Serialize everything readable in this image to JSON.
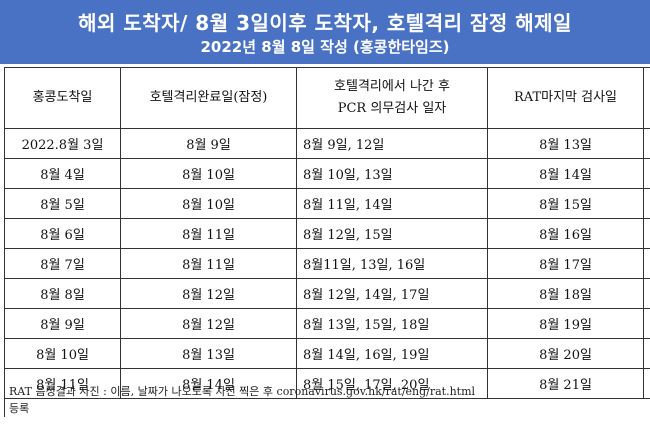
{
  "banner": {
    "title": "해외 도착자/ 8월 3일이후 도착자, 호텔격리 잠정 해제일",
    "subtitle": "2022년 8월 8일 작성 (홍콩한타임즈)"
  },
  "table": {
    "headers": [
      {
        "line1": "홍콩도착일",
        "line2": ""
      },
      {
        "line1": "호텔격리완료일(잠정)",
        "line2": ""
      },
      {
        "line1": "호텔격리에서 나간 후",
        "line2": "PCR 의무검사 일자"
      },
      {
        "line1": "RAT마지막 검사일",
        "line2": ""
      },
      {
        "line1": "",
        "line2": ""
      }
    ],
    "rows": [
      [
        "2022.8월 3일",
        "8월 9일",
        "8월 9일, 12일",
        "8월 13일"
      ],
      [
        "8월 4일",
        "8월 10일",
        "8월 10일, 13일",
        "8월 14일"
      ],
      [
        "8월 5일",
        "8월 10일",
        "8월 11일, 14일",
        "8월 15일"
      ],
      [
        "8월 6일",
        "8월 11일",
        "8월 12일, 15일",
        "8월 16일"
      ],
      [
        "8월 7일",
        "8월 11일",
        "8월11일, 13일, 16일",
        "8월 17일"
      ],
      [
        "8월 8일",
        "8월 12일",
        "8월 12일, 14일, 17일",
        "8월 18일"
      ],
      [
        "8월 9일",
        "8월 12일",
        "8월 13일, 15일, 18일",
        "8월 19일"
      ],
      [
        "8월 10일",
        "8월 13일",
        "8월 14일, 16일, 19일",
        "8월 20일"
      ],
      [
        "8월 11일",
        "8월 14일",
        "8월 15일, 17일, 20일",
        "8월 21일"
      ]
    ]
  },
  "note": {
    "line1": "RAT 음성결과 사진 : 이름, 날짜가 나오도록 사진 찍은 후 coronavirus.gov.hk/rat/eng/rat.html",
    "line2": "등록"
  },
  "colors": {
    "banner_bg": "#4a72c4",
    "banner_text": "#ffffff",
    "border": "#333333"
  }
}
